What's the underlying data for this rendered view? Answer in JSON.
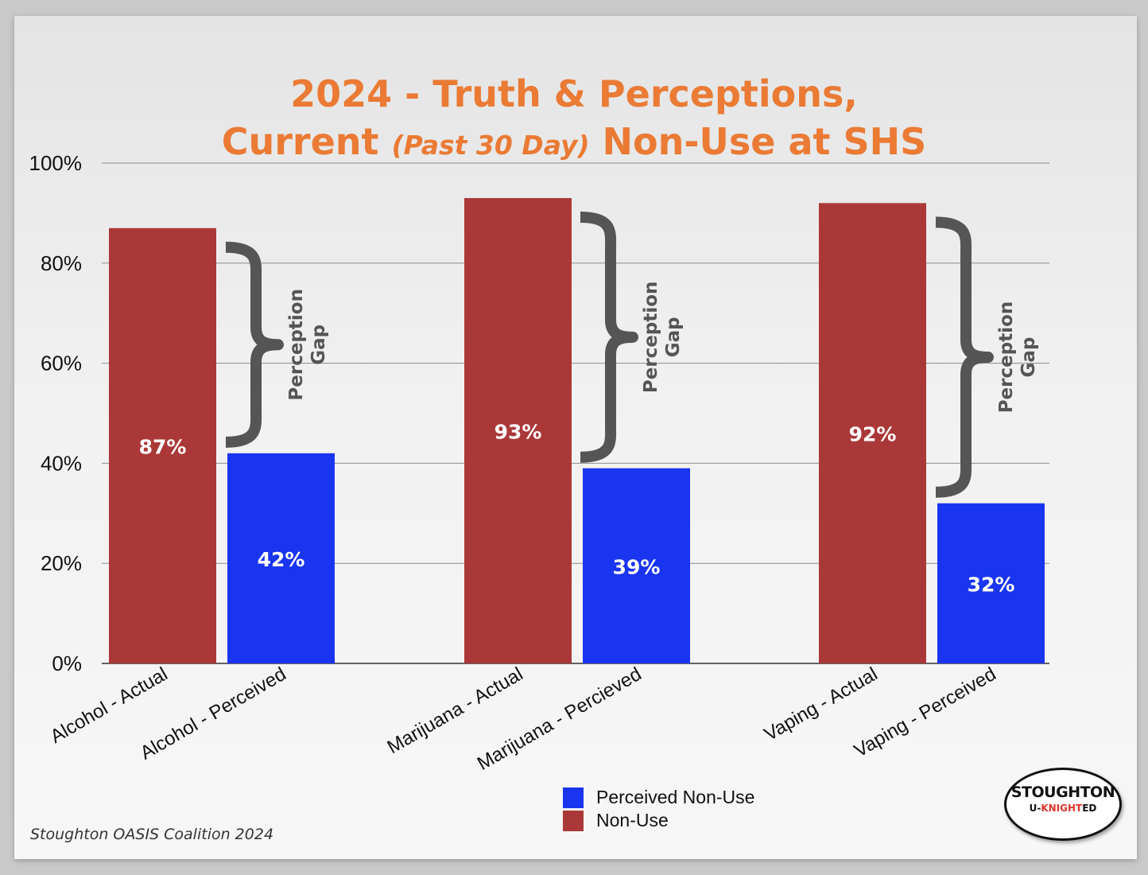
{
  "title": {
    "line1": "2024 - Truth & Perceptions,",
    "line2_prefix": "Current ",
    "line2_italic": "(Past 30 Day)",
    "line2_suffix": " Non-Use at SHS"
  },
  "colors": {
    "actual": "#ab3838",
    "perceived": "#1a35f0",
    "title": "#ea7a34",
    "bracket": "#555555"
  },
  "chart_data": {
    "type": "bar",
    "categories": [
      "Alcohol - Actual",
      "Alcohol - Perceived",
      "Marijuana - Actual",
      "Marijuana - Percieved",
      "Vaping - Actual",
      "Vaping - Perceived"
    ],
    "values": [
      87,
      42,
      93,
      39,
      92,
      32
    ],
    "value_labels": [
      "87%",
      "42%",
      "93%",
      "39%",
      "92%",
      "32%"
    ],
    "series_of_bar": [
      "Non-Use",
      "Perceived Non-Use",
      "Non-Use",
      "Perceived Non-Use",
      "Non-Use",
      "Perceived Non-Use"
    ],
    "ylim": [
      0,
      100
    ],
    "yticks": [
      0,
      20,
      40,
      60,
      80,
      100
    ],
    "ytick_labels": [
      "0%",
      "20%",
      "40%",
      "60%",
      "80%",
      "100%"
    ],
    "grid": true,
    "legend": {
      "placement": "bottom-center",
      "entries": [
        "Perceived Non-Use",
        "Non-Use"
      ]
    },
    "annotations": [
      {
        "text": "Perception Gap",
        "line1": "Perception",
        "line2": "Gap",
        "from": 87,
        "to": 42
      },
      {
        "text": "Perception Gap",
        "line1": "Perception",
        "line2": "Gap",
        "from": 93,
        "to": 39
      },
      {
        "text": "Perception Gap",
        "line1": "Perception",
        "line2": "Gap",
        "from": 92,
        "to": 32
      }
    ]
  },
  "source": "Stoughton OASIS Coalition 2024",
  "logo": {
    "line1": "STOUGHTON",
    "line2_a": "U-",
    "line2_b": "KNIGHT",
    "line2_c": "ED"
  }
}
